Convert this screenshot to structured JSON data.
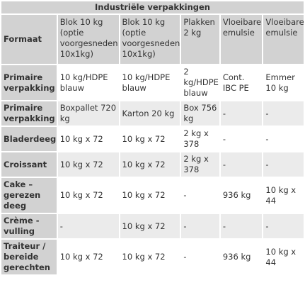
{
  "title": "Industriële verpakkingen",
  "headers": [
    "Formaat",
    "Blok 10 kg (optie voorgesneden 10x1kg)",
    "Blok 10 kg (optie voorgesneden 10x1kg)",
    "Plakken 2 kg",
    "Vloeibare emulsie",
    "Vloeibare emulsie"
  ],
  "rows": [
    {
      "label": "Primaire verpakking",
      "cells": [
        "10 kg/HDPE blauw",
        "10 kg/HDPE blauw",
        "2 kg/HDPE blauw",
        "Cont. IBC PE",
        "Emmer 10 kg"
      ]
    },
    {
      "label": "Primaire verpakking",
      "cells": [
        "Boxpallet 720 kg",
        "Karton 20 kg",
        "Box 756 kg",
        "-",
        "-"
      ]
    },
    {
      "label": "Bladerdeeg",
      "cells": [
        "10 kg x 72",
        "10 kg x 72",
        "2 kg x 378",
        "-",
        "-"
      ]
    },
    {
      "label": "Croissant",
      "cells": [
        "10 kg x 72",
        "10 kg x 72",
        "2 kg x 378",
        "-",
        "-"
      ]
    },
    {
      "label": "Cake – gerezen deeg",
      "cells": [
        "10 kg x 72",
        "10 kg x 72",
        "-",
        "936 kg",
        "10 kg x 44"
      ]
    },
    {
      "label": "Crème - vulling",
      "cells": [
        "-",
        "10 kg x 72",
        "-",
        "-",
        "-"
      ]
    },
    {
      "label": "Traiteur / bereide gerechten",
      "cells": [
        "10 kg x 72",
        "10 kg x 72",
        "-",
        "936 kg",
        "10 kg x 44"
      ]
    }
  ],
  "colors": {
    "header_bg": "#d2d2d2",
    "row_alt_bg": "#ebebeb",
    "row_bg": "#ffffff",
    "text": "#333333"
  }
}
